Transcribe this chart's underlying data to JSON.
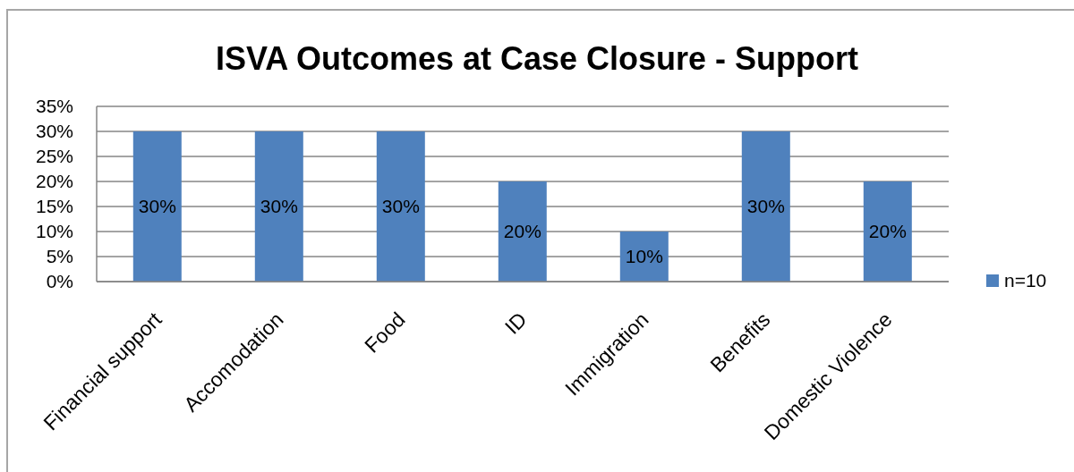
{
  "chart_data": {
    "type": "bar",
    "title": "ISVA Outcomes at Case Closure - Support",
    "categories": [
      "Financial support",
      "Accomodation",
      "Food",
      "ID",
      "Immigration",
      "Benefits",
      "Domestic Violence"
    ],
    "series": [
      {
        "name": "n=10",
        "color": "#4f81bd",
        "values": [
          30,
          30,
          30,
          20,
          10,
          30,
          20
        ],
        "value_labels": [
          "30%",
          "30%",
          "30%",
          "20%",
          "10%",
          "30%",
          "20%"
        ]
      }
    ],
    "ylim": [
      0,
      35
    ],
    "yticks": [
      {
        "value": 0,
        "label": "0%"
      },
      {
        "value": 5,
        "label": "5%"
      },
      {
        "value": 10,
        "label": "10%"
      },
      {
        "value": 15,
        "label": "15%"
      },
      {
        "value": 20,
        "label": "20%"
      },
      {
        "value": 25,
        "label": "25%"
      },
      {
        "value": 30,
        "label": "30%"
      },
      {
        "value": 35,
        "label": "35%"
      }
    ],
    "grid": "y",
    "legend": "right"
  }
}
